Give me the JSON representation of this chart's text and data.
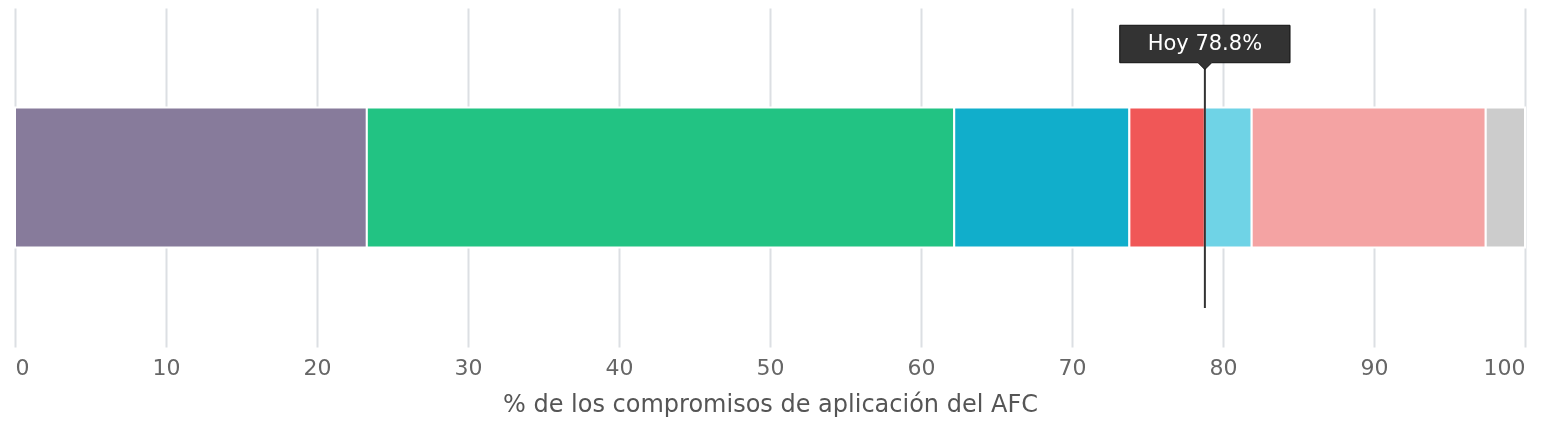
{
  "chart_data": {
    "type": "bar",
    "orientation": "horizontal",
    "stacked": true,
    "categories": [
      null
    ],
    "series": [
      {
        "color": "#877b9b",
        "values": [
          23.3
        ]
      },
      {
        "color": "#22c383",
        "values": [
          38.9
        ]
      },
      {
        "color": "#11aecb",
        "values": [
          11.6
        ]
      },
      {
        "color": "#f05757",
        "values": [
          5.0
        ]
      },
      {
        "color": "#6fd3e6",
        "values": [
          3.1
        ]
      },
      {
        "color": "#f4a3a3",
        "values": [
          15.5
        ]
      },
      {
        "color": "#cccccc",
        "values": [
          2.6
        ]
      }
    ],
    "xlabel": "% de los compromisos de aplicación del AFC",
    "xlim": [
      0,
      100
    ],
    "xticks": [
      0,
      10,
      20,
      30,
      40,
      50,
      60,
      70,
      80,
      90,
      100
    ],
    "grid": "x",
    "legend": false,
    "ref_lines": [
      {
        "axis": "x",
        "value": 78.8,
        "label": "Hoy 78.8%",
        "color": "#333333"
      }
    ]
  }
}
